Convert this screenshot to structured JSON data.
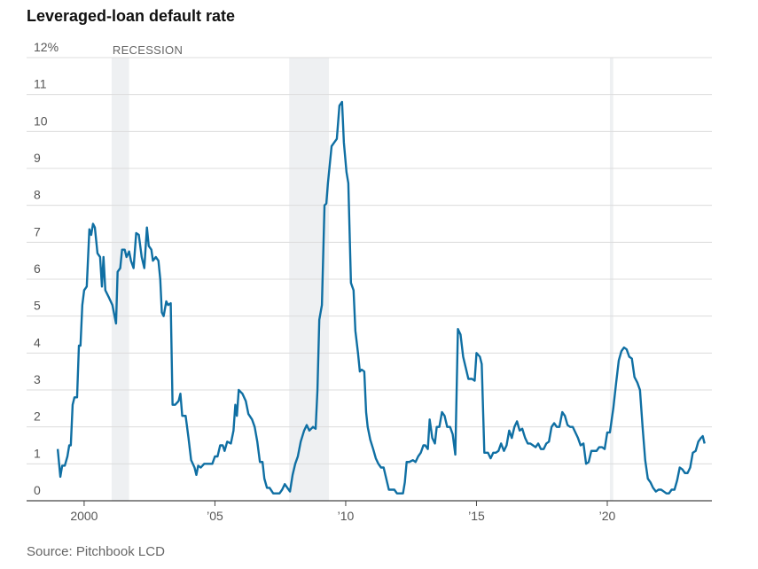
{
  "chart_data": {
    "type": "line",
    "title": "Leveraged-loan default rate",
    "source": "Source: Pitchbook LCD",
    "recession_label": "RECESSION",
    "recessions": [
      [
        2001.05,
        2001.72
      ],
      [
        2007.84,
        2009.36
      ],
      [
        2020.1,
        2020.23
      ]
    ],
    "xlim": [
      1997.8,
      2024.0
    ],
    "ylim": [
      0,
      12
    ],
    "xticks": [
      2000,
      {
        "value": 2005,
        "label": "’05"
      },
      {
        "value": 2010,
        "label": "’10"
      },
      {
        "value": 2015,
        "label": "’15"
      },
      {
        "value": 2020,
        "label": "’20"
      }
    ],
    "yticks": [
      0,
      1,
      2,
      3,
      4,
      5,
      6,
      7,
      8,
      9,
      10,
      11,
      {
        "value": 12,
        "label": "12%"
      }
    ],
    "grid": true,
    "x": [
      1998.99,
      1999.09,
      1999.16,
      1999.26,
      1999.36,
      1999.43,
      1999.49,
      1999.56,
      1999.63,
      1999.73,
      1999.8,
      1999.86,
      1999.93,
      2000.0,
      2000.1,
      2000.2,
      2000.27,
      2000.34,
      2000.41,
      2000.51,
      2000.61,
      2000.68,
      2000.74,
      2000.81,
      2000.95,
      2001.08,
      2001.22,
      2001.28,
      2001.38,
      2001.45,
      2001.55,
      2001.62,
      2001.72,
      2001.79,
      2001.89,
      2001.99,
      2002.09,
      2002.2,
      2002.3,
      2002.4,
      2002.47,
      2002.57,
      2002.63,
      2002.74,
      2002.84,
      2002.91,
      2002.97,
      2003.04,
      2003.14,
      2003.21,
      2003.31,
      2003.38,
      2003.48,
      2003.61,
      2003.68,
      2003.75,
      2003.88,
      2003.99,
      2004.09,
      2004.22,
      2004.29,
      2004.36,
      2004.46,
      2004.59,
      2004.7,
      2004.8,
      2004.9,
      2005.0,
      2005.1,
      2005.2,
      2005.3,
      2005.37,
      2005.47,
      2005.61,
      2005.71,
      2005.78,
      2005.84,
      2005.91,
      2006.05,
      2006.18,
      2006.28,
      2006.42,
      2006.52,
      2006.62,
      2006.72,
      2006.82,
      2006.89,
      2006.99,
      2007.09,
      2007.23,
      2007.36,
      2007.47,
      2007.57,
      2007.67,
      2007.77,
      2007.87,
      2007.97,
      2008.07,
      2008.17,
      2008.28,
      2008.41,
      2008.51,
      2008.61,
      2008.75,
      2008.85,
      2008.92,
      2008.99,
      2009.09,
      2009.19,
      2009.26,
      2009.32,
      2009.39,
      2009.46,
      2009.56,
      2009.66,
      2009.76,
      2009.86,
      2009.93,
      2010.03,
      2010.1,
      2010.2,
      2010.3,
      2010.37,
      2010.47,
      2010.54,
      2010.61,
      2010.71,
      2010.78,
      2010.84,
      2010.94,
      2011.05,
      2011.15,
      2011.25,
      2011.35,
      2011.45,
      2011.55,
      2011.65,
      2011.76,
      2011.86,
      2011.96,
      2012.06,
      2012.19,
      2012.26,
      2012.33,
      2012.43,
      2012.57,
      2012.67,
      2012.77,
      2012.87,
      2012.97,
      2013.04,
      2013.14,
      2013.21,
      2013.31,
      2013.41,
      2013.48,
      2013.58,
      2013.68,
      2013.78,
      2013.88,
      2013.99,
      2014.09,
      2014.19,
      2014.29,
      2014.39,
      2014.49,
      2014.59,
      2014.69,
      2014.83,
      2014.93,
      2015.0,
      2015.13,
      2015.2,
      2015.3,
      2015.44,
      2015.54,
      2015.64,
      2015.74,
      2015.84,
      2015.94,
      2016.05,
      2016.15,
      2016.25,
      2016.35,
      2016.45,
      2016.55,
      2016.65,
      2016.75,
      2016.86,
      2016.96,
      2017.06,
      2017.16,
      2017.26,
      2017.36,
      2017.46,
      2017.57,
      2017.67,
      2017.77,
      2017.87,
      2017.97,
      2018.07,
      2018.17,
      2018.28,
      2018.38,
      2018.48,
      2018.58,
      2018.68,
      2018.78,
      2018.88,
      2018.98,
      2019.09,
      2019.19,
      2019.29,
      2019.39,
      2019.49,
      2019.59,
      2019.69,
      2019.8,
      2019.9,
      2020.0,
      2020.1,
      2020.17,
      2020.23,
      2020.34,
      2020.44,
      2020.54,
      2020.64,
      2020.74,
      2020.84,
      2020.94,
      2021.04,
      2021.15,
      2021.25,
      2021.35,
      2021.45,
      2021.55,
      2021.65,
      2021.75,
      2021.86,
      2021.96,
      2022.06,
      2022.16,
      2022.26,
      2022.36,
      2022.46,
      2022.57,
      2022.67,
      2022.77,
      2022.87,
      2022.97,
      2023.07,
      2023.17,
      2023.27,
      2023.38,
      2023.48,
      2023.58,
      2023.65,
      2023.72
    ],
    "series": [
      {
        "name": "Default rate",
        "color": "#0f6fa3",
        "values": [
          1.4,
          0.65,
          0.95,
          0.95,
          1.2,
          1.5,
          1.5,
          2.6,
          2.8,
          2.8,
          4.2,
          4.2,
          5.3,
          5.7,
          5.8,
          7.35,
          7.2,
          7.5,
          7.4,
          6.7,
          6.6,
          5.8,
          6.6,
          5.7,
          5.5,
          5.3,
          4.8,
          6.2,
          6.3,
          6.8,
          6.8,
          6.6,
          6.75,
          6.5,
          6.3,
          7.25,
          7.2,
          6.6,
          6.3,
          7.4,
          6.9,
          6.8,
          6.5,
          6.6,
          6.5,
          6.0,
          5.1,
          5.0,
          5.4,
          5.3,
          5.35,
          2.6,
          2.6,
          2.7,
          2.9,
          2.3,
          2.3,
          1.7,
          1.1,
          0.9,
          0.7,
          0.95,
          0.9,
          1.0,
          1.0,
          1.0,
          1.0,
          1.2,
          1.2,
          1.5,
          1.5,
          1.35,
          1.6,
          1.55,
          1.9,
          2.6,
          2.3,
          3.0,
          2.9,
          2.7,
          2.35,
          2.2,
          2.0,
          1.6,
          1.05,
          1.05,
          0.6,
          0.35,
          0.35,
          0.2,
          0.2,
          0.2,
          0.3,
          0.45,
          0.35,
          0.25,
          0.7,
          1.0,
          1.2,
          1.6,
          1.9,
          2.05,
          1.9,
          2.0,
          1.95,
          3.0,
          4.9,
          5.3,
          8.0,
          8.05,
          8.6,
          9.1,
          9.6,
          9.7,
          9.8,
          10.7,
          10.8,
          9.7,
          8.9,
          8.6,
          5.9,
          5.7,
          4.6,
          4.0,
          3.5,
          3.55,
          3.5,
          2.4,
          2.0,
          1.65,
          1.4,
          1.15,
          1.0,
          0.9,
          0.9,
          0.6,
          0.3,
          0.3,
          0.3,
          0.2,
          0.2,
          0.2,
          0.5,
          1.05,
          1.05,
          1.1,
          1.05,
          1.2,
          1.3,
          1.5,
          1.5,
          1.4,
          2.2,
          1.7,
          1.55,
          2.0,
          2.0,
          2.4,
          2.3,
          2.0,
          2.0,
          1.8,
          1.25,
          4.65,
          4.5,
          3.9,
          3.6,
          3.3,
          3.3,
          3.25,
          4.0,
          3.9,
          3.7,
          1.3,
          1.3,
          1.15,
          1.3,
          1.3,
          1.35,
          1.55,
          1.35,
          1.5,
          1.9,
          1.7,
          2.0,
          2.15,
          1.9,
          1.95,
          1.7,
          1.55,
          1.55,
          1.5,
          1.45,
          1.55,
          1.4,
          1.4,
          1.55,
          1.6,
          2.0,
          2.1,
          2.0,
          2.0,
          2.4,
          2.3,
          2.05,
          2.0,
          2.0,
          1.85,
          1.7,
          1.5,
          1.55,
          1.0,
          1.05,
          1.35,
          1.35,
          1.35,
          1.45,
          1.45,
          1.4,
          1.85,
          1.85,
          2.2,
          2.5,
          3.2,
          3.8,
          4.05,
          4.15,
          4.1,
          3.9,
          3.85,
          3.35,
          3.2,
          3.0,
          2.0,
          1.1,
          0.6,
          0.5,
          0.35,
          0.25,
          0.3,
          0.3,
          0.25,
          0.2,
          0.2,
          0.3,
          0.3,
          0.55,
          0.9,
          0.85,
          0.75,
          0.75,
          0.9,
          1.3,
          1.35,
          1.6,
          1.7,
          1.75,
          1.55
        ]
      }
    ]
  }
}
